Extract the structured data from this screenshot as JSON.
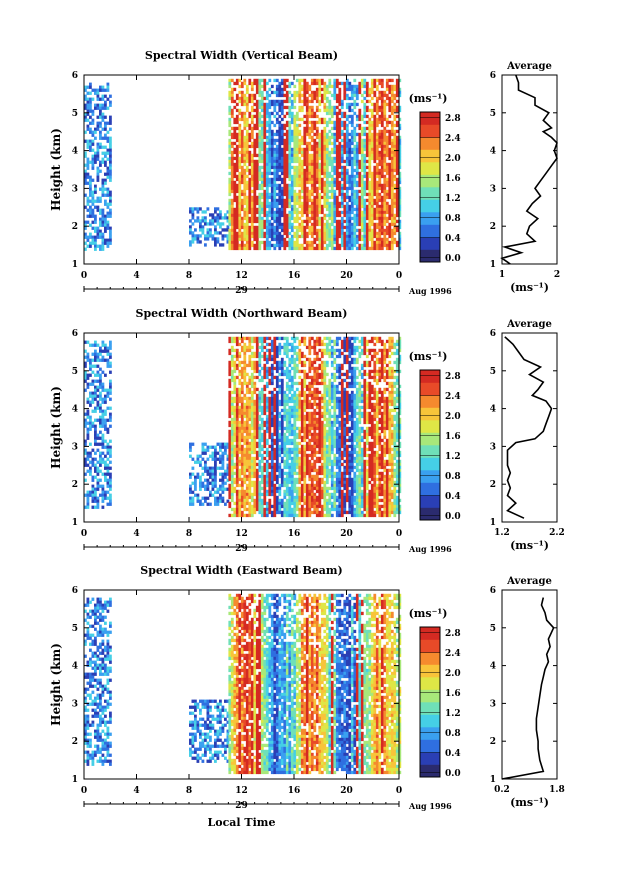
{
  "figure": {
    "x_axis_label": "Local Time",
    "date_label": "Aug 1996",
    "day_label": "29",
    "colorbar_unit": "(ms⁻¹)",
    "average_title": "Average",
    "average_xlabel": "(ms⁻¹)",
    "palette": [
      "#2b2b6e",
      "#2a3fb5",
      "#2f6fe0",
      "#3aa0f0",
      "#45cfe6",
      "#6fe0b8",
      "#a8e87a",
      "#dfe646",
      "#f8c43a",
      "#f58a2e",
      "#e84a28",
      "#d42a22"
    ]
  },
  "chart_data": [
    {
      "type": "heatmap",
      "title": "Spectral Width (Vertical Beam)",
      "ylabel": "Height (km)",
      "xlabel": "Local Time",
      "x_ticks": [
        "0",
        "4",
        "8",
        "12",
        "16",
        "20",
        "0"
      ],
      "y_ticks": [
        "1",
        "2",
        "3",
        "4",
        "5",
        "6"
      ],
      "xlim": [
        0,
        24
      ],
      "ylim": [
        1,
        6
      ],
      "colorbar": {
        "unit": "(ms⁻¹)",
        "ticks": [
          "0.0",
          "0.4",
          "0.8",
          "1.2",
          "1.6",
          "2.0",
          "2.4",
          "2.8"
        ],
        "range": [
          0,
          3.0
        ]
      },
      "data_blocks": [
        {
          "x": [
            0,
            2
          ],
          "y": [
            1.4,
            5.8
          ],
          "level": "low"
        },
        {
          "x": [
            8,
            11
          ],
          "y": [
            1.5,
            2.5
          ],
          "level": "low"
        },
        {
          "x": [
            11,
            24
          ],
          "y": [
            1.4,
            5.9
          ],
          "level": "mixed-high"
        }
      ],
      "average": {
        "title": "Average",
        "xlabel": "(ms⁻¹)",
        "x_ticks": [
          "1",
          "2"
        ],
        "y_ticks": [
          "1",
          "2",
          "3",
          "4",
          "5",
          "6"
        ],
        "xlim": [
          1,
          2.0
        ],
        "ylim": [
          1,
          6
        ],
        "profile": [
          [
            1.15,
            1.0
          ],
          [
            1.0,
            1.15
          ],
          [
            1.35,
            1.3
          ],
          [
            1.05,
            1.45
          ],
          [
            1.6,
            1.6
          ],
          [
            1.45,
            1.8
          ],
          [
            1.5,
            2.0
          ],
          [
            1.65,
            2.2
          ],
          [
            1.45,
            2.4
          ],
          [
            1.55,
            2.6
          ],
          [
            1.7,
            2.8
          ],
          [
            1.6,
            3.0
          ],
          [
            1.7,
            3.2
          ],
          [
            1.8,
            3.4
          ],
          [
            1.9,
            3.6
          ],
          [
            2.0,
            3.8
          ],
          [
            1.95,
            4.0
          ],
          [
            2.0,
            4.2
          ],
          [
            1.9,
            4.35
          ],
          [
            1.75,
            4.5
          ],
          [
            1.9,
            4.6
          ],
          [
            1.75,
            4.8
          ],
          [
            1.85,
            5.0
          ],
          [
            1.6,
            5.2
          ],
          [
            1.6,
            5.4
          ],
          [
            1.3,
            5.6
          ],
          [
            1.3,
            5.8
          ],
          [
            1.25,
            6.0
          ]
        ]
      }
    },
    {
      "type": "heatmap",
      "title": "Spectral Width (Northward Beam)",
      "ylabel": "Height (km)",
      "xlabel": "Local Time",
      "x_ticks": [
        "0",
        "4",
        "8",
        "12",
        "16",
        "20",
        "0"
      ],
      "y_ticks": [
        "1",
        "2",
        "3",
        "4",
        "5",
        "6"
      ],
      "xlim": [
        0,
        24
      ],
      "ylim": [
        1,
        6
      ],
      "colorbar": {
        "unit": "(ms⁻¹)",
        "ticks": [
          "0.0",
          "0.4",
          "0.8",
          "1.2",
          "1.6",
          "2.0",
          "2.4",
          "2.8"
        ],
        "range": [
          0,
          3.0
        ]
      },
      "data_blocks": [
        {
          "x": [
            0,
            2
          ],
          "y": [
            1.4,
            5.8
          ],
          "level": "low"
        },
        {
          "x": [
            8,
            11
          ],
          "y": [
            1.5,
            3.1
          ],
          "level": "low"
        },
        {
          "x": [
            11,
            24
          ],
          "y": [
            1.2,
            5.9
          ],
          "level": "mixed-high"
        }
      ],
      "average": {
        "title": "Average",
        "xlabel": "(ms⁻¹)",
        "x_ticks": [
          "1.2",
          "2.2"
        ],
        "y_ticks": [
          "1",
          "2",
          "3",
          "4",
          "5",
          "6"
        ],
        "xlim": [
          1.2,
          2.2
        ],
        "ylim": [
          1,
          6
        ],
        "profile": [
          [
            1.6,
            1.1
          ],
          [
            1.3,
            1.3
          ],
          [
            1.45,
            1.5
          ],
          [
            1.3,
            1.7
          ],
          [
            1.35,
            1.9
          ],
          [
            1.3,
            2.1
          ],
          [
            1.35,
            2.3
          ],
          [
            1.3,
            2.5
          ],
          [
            1.3,
            2.7
          ],
          [
            1.3,
            2.9
          ],
          [
            1.45,
            3.1
          ],
          [
            1.8,
            3.2
          ],
          [
            1.95,
            3.4
          ],
          [
            2.0,
            3.6
          ],
          [
            2.05,
            3.8
          ],
          [
            2.1,
            4.0
          ],
          [
            2.0,
            4.2
          ],
          [
            1.75,
            4.35
          ],
          [
            1.85,
            4.5
          ],
          [
            1.95,
            4.7
          ],
          [
            1.7,
            4.9
          ],
          [
            1.9,
            5.1
          ],
          [
            1.6,
            5.3
          ],
          [
            1.5,
            5.5
          ],
          [
            1.4,
            5.7
          ],
          [
            1.25,
            5.9
          ]
        ]
      }
    },
    {
      "type": "heatmap",
      "title": "Spectral Width (Eastward Beam)",
      "ylabel": "Height (km)",
      "xlabel": "Local Time",
      "x_ticks": [
        "0",
        "4",
        "8",
        "12",
        "16",
        "20",
        "0"
      ],
      "y_ticks": [
        "1",
        "2",
        "3",
        "4",
        "5",
        "6"
      ],
      "xlim": [
        0,
        24
      ],
      "ylim": [
        1,
        6
      ],
      "colorbar": {
        "unit": "(ms⁻¹)",
        "ticks": [
          "0.0",
          "0.4",
          "0.8",
          "1.2",
          "1.6",
          "2.0",
          "2.4",
          "2.8"
        ],
        "range": [
          0,
          3.0
        ]
      },
      "data_blocks": [
        {
          "x": [
            0,
            2
          ],
          "y": [
            1.4,
            5.8
          ],
          "level": "low"
        },
        {
          "x": [
            8,
            11
          ],
          "y": [
            1.5,
            3.1
          ],
          "level": "low"
        },
        {
          "x": [
            11,
            24
          ],
          "y": [
            1.2,
            5.9
          ],
          "level": "mixed-high"
        }
      ],
      "average": {
        "title": "Average",
        "xlabel": "(ms⁻¹)",
        "x_ticks": [
          "0.2",
          "1.8"
        ],
        "y_ticks": [
          "1",
          "2",
          "3",
          "4",
          "5",
          "6"
        ],
        "xlim": [
          0.2,
          1.8
        ],
        "ylim": [
          1,
          6
        ],
        "profile": [
          [
            0.2,
            1.0
          ],
          [
            1.4,
            1.2
          ],
          [
            1.3,
            1.5
          ],
          [
            1.25,
            1.8
          ],
          [
            1.25,
            2.0
          ],
          [
            1.2,
            2.3
          ],
          [
            1.2,
            2.6
          ],
          [
            1.25,
            2.9
          ],
          [
            1.3,
            3.2
          ],
          [
            1.35,
            3.5
          ],
          [
            1.4,
            3.7
          ],
          [
            1.45,
            3.9
          ],
          [
            1.55,
            4.1
          ],
          [
            1.5,
            4.3
          ],
          [
            1.6,
            4.5
          ],
          [
            1.55,
            4.7
          ],
          [
            1.7,
            5.0
          ],
          [
            1.5,
            5.2
          ],
          [
            1.45,
            5.4
          ],
          [
            1.35,
            5.6
          ],
          [
            1.4,
            5.8
          ]
        ]
      }
    }
  ]
}
